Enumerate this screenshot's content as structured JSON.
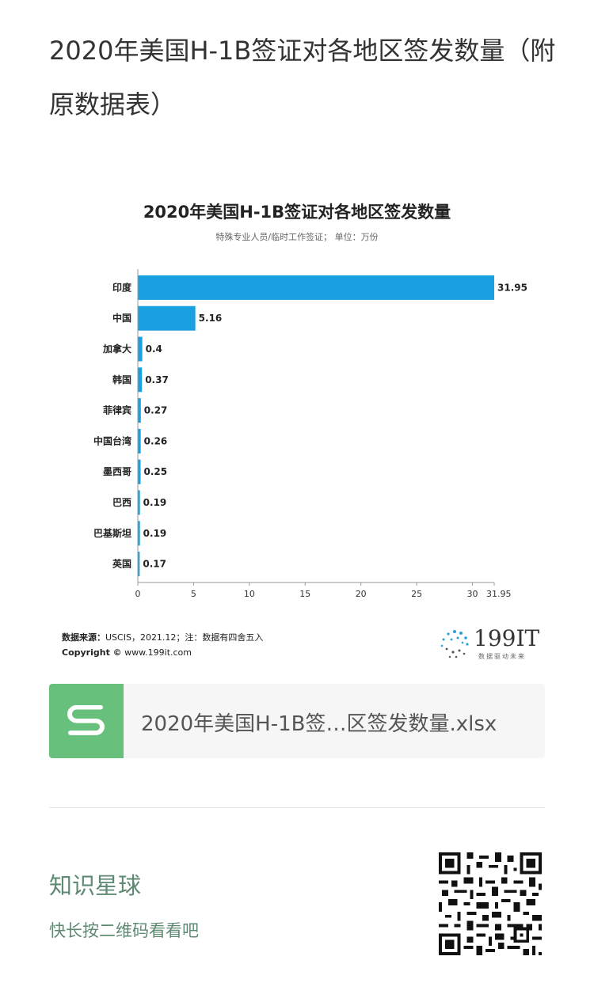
{
  "page": {
    "title": "2020年美国H-1B签证对各地区签发数量（附原数据表）"
  },
  "chart_data": {
    "type": "bar",
    "orientation": "horizontal",
    "title": "2020年美国H-1B签证对各地区签发数量",
    "subtitle": "特殊专业人员/临时工作签证； 单位：万份",
    "categories": [
      "印度",
      "中国",
      "加拿大",
      "韩国",
      "菲律宾",
      "中国台湾",
      "墨西哥",
      "巴西",
      "巴基斯坦",
      "英国"
    ],
    "values": [
      31.95,
      5.16,
      0.4,
      0.37,
      0.27,
      0.26,
      0.25,
      0.19,
      0.19,
      0.17
    ],
    "value_labels": [
      "31.95",
      "5.16",
      "0.4",
      "0.37",
      "0.27",
      "0.26",
      "0.25",
      "0.19",
      "0.19",
      "0.17"
    ],
    "x_ticks": [
      "0",
      "5",
      "10",
      "15",
      "20",
      "25",
      "30",
      "31.95"
    ],
    "xlim": [
      0,
      31.95
    ],
    "grid": false,
    "bar_color": "#1a9fe0"
  },
  "footer": {
    "source_label": "数据来源：",
    "source_text": "USCIS，2021.12；注：数据有四舍五入",
    "copyright_label": "Copyright ©",
    "copyright_text": " www.199it.com",
    "logo_text": "199IT",
    "logo_sub": "数据驱动未来"
  },
  "file": {
    "name": "2020年美国H-1B签…区签发数量.xlsx",
    "icon": "spreadsheet-s-icon",
    "icon_color": "#67c07c"
  },
  "promo": {
    "title": "知识星球",
    "subtitle": "快长按二维码看看吧",
    "text_color": "#5f8a72"
  }
}
